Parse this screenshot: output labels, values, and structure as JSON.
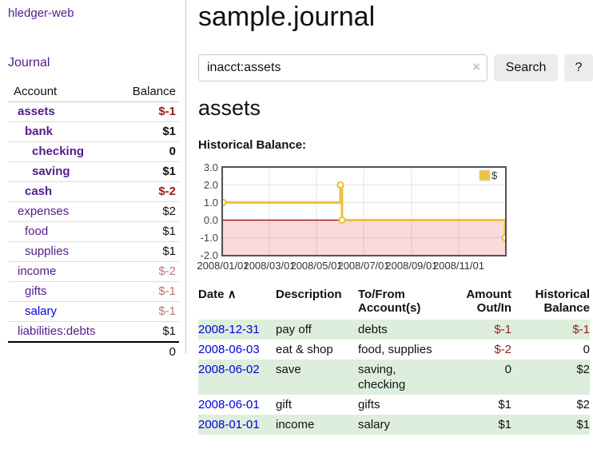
{
  "brand": "hledger-web",
  "sidebar": {
    "journal_link": "Journal",
    "accounts": {
      "header": {
        "account": "Account",
        "balance": "Balance"
      },
      "rows": [
        {
          "name": "assets",
          "balance": "$-1",
          "depth": 1,
          "bold": true,
          "amount_class": "neg",
          "link_class": "acct-purple"
        },
        {
          "name": "bank",
          "balance": "$1",
          "depth": 2,
          "bold": true,
          "amount_class": "",
          "link_class": "acct-purple"
        },
        {
          "name": "checking",
          "balance": "0",
          "depth": 3,
          "bold": true,
          "amount_class": "",
          "link_class": "acct-purple"
        },
        {
          "name": "saving",
          "balance": "$1",
          "depth": 3,
          "bold": true,
          "amount_class": "",
          "link_class": "acct-purple"
        },
        {
          "name": "cash",
          "balance": "$-2",
          "depth": 2,
          "bold": true,
          "amount_class": "neg",
          "link_class": "acct-purple"
        },
        {
          "name": "expenses",
          "balance": "$2",
          "depth": 1,
          "bold": false,
          "amount_class": "",
          "link_class": "acct-purple"
        },
        {
          "name": "food",
          "balance": "$1",
          "depth": 2,
          "bold": false,
          "amount_class": "",
          "link_class": "acct-purple"
        },
        {
          "name": "supplies",
          "balance": "$1",
          "depth": 2,
          "bold": false,
          "amount_class": "",
          "link_class": "acct-purple"
        },
        {
          "name": "income",
          "balance": "$-2",
          "depth": 1,
          "bold": false,
          "amount_class": "soft-neg",
          "link_class": "acct-purple"
        },
        {
          "name": "gifts",
          "balance": "$-1",
          "depth": 2,
          "bold": false,
          "amount_class": "soft-neg",
          "link_class": "acct-purple"
        },
        {
          "name": "salary",
          "balance": "$-1",
          "depth": 2,
          "bold": false,
          "amount_class": "soft-neg",
          "link_class": "acct-blue"
        },
        {
          "name": "liabilities:debts",
          "balance": "$1",
          "depth": 1,
          "bold": false,
          "amount_class": "",
          "link_class": "acct-purple"
        }
      ],
      "total": "0"
    }
  },
  "main": {
    "title": "sample.journal",
    "search": {
      "value": "inacct:assets",
      "clear_icon": "×",
      "search_button": "Search",
      "help_button": "?"
    },
    "account_heading": "assets",
    "chart_title": "Historical Balance:"
  },
  "chart_data": {
    "type": "line",
    "step": true,
    "title": "Historical Balance",
    "ylim": [
      -2,
      3
    ],
    "y_ticks": [
      "3.0",
      "2.0",
      "1.0",
      "0.0",
      "-1.0",
      "-2.0"
    ],
    "y_tick_values": [
      3,
      2,
      1,
      0,
      -1,
      -2
    ],
    "x_range_days": [
      0,
      365
    ],
    "x_ticks": [
      {
        "label": "2008/01/01",
        "day": 0
      },
      {
        "label": "2008/03/01",
        "day": 60
      },
      {
        "label": "2008/05/01",
        "day": 121
      },
      {
        "label": "2008/07/01",
        "day": 182
      },
      {
        "label": "2008/09/01",
        "day": 244
      },
      {
        "label": "2008/11/01",
        "day": 305
      }
    ],
    "series": [
      {
        "name": "$",
        "color": "#EDC240",
        "points": [
          {
            "date": "2008-01-01",
            "day": 0,
            "value": 1
          },
          {
            "date": "2008-06-01",
            "day": 152,
            "value": 2
          },
          {
            "date": "2008-06-03",
            "day": 154,
            "value": 0
          },
          {
            "date": "2008-12-31",
            "day": 365,
            "value": -1
          }
        ]
      }
    ],
    "negative_fill": "#fbdada",
    "zero_line_color": "#8b0000",
    "grid": true,
    "legend_position": "top-right"
  },
  "register": {
    "headers": {
      "date": "Date",
      "sort_icon": "∧",
      "description": "Description",
      "accounts_line1": "To/From",
      "accounts_line2": "Account(s)",
      "amount_line1": "Amount",
      "amount_line2": "Out/In",
      "balance_line1": "Historical",
      "balance_line2": "Balance"
    },
    "rows": [
      {
        "date": "2008-12-31",
        "description": "pay off",
        "accounts": [
          "debts"
        ],
        "amount": "$-1",
        "amount_class": "neg",
        "balance": "$-1",
        "balance_class": "neg"
      },
      {
        "date": "2008-06-03",
        "description": "eat & shop",
        "accounts": [
          "food, supplies"
        ],
        "amount": "$-2",
        "amount_class": "neg",
        "balance": "0",
        "balance_class": ""
      },
      {
        "date": "2008-06-02",
        "description": "save",
        "accounts": [
          "saving,",
          "checking"
        ],
        "amount": "0",
        "amount_class": "",
        "balance": "$2",
        "balance_class": ""
      },
      {
        "date": "2008-06-01",
        "description": "gift",
        "accounts": [
          "gifts"
        ],
        "amount": "$1",
        "amount_class": "",
        "balance": "$2",
        "balance_class": ""
      },
      {
        "date": "2008-01-01",
        "description": "income",
        "accounts": [
          "salary"
        ],
        "amount": "$1",
        "amount_class": "",
        "balance": "$1",
        "balance_class": ""
      }
    ]
  },
  "colors": {
    "purple_link": "#551A8B",
    "blue_link": "#0000DD",
    "negative_strong": "#9b1c1c",
    "negative_soft": "#b97878",
    "row_stripe_green": "#ddeedd",
    "series_yellow": "#EDC240",
    "chart_negative_fill": "#fbdada",
    "chart_zero_line": "#8b0000"
  }
}
